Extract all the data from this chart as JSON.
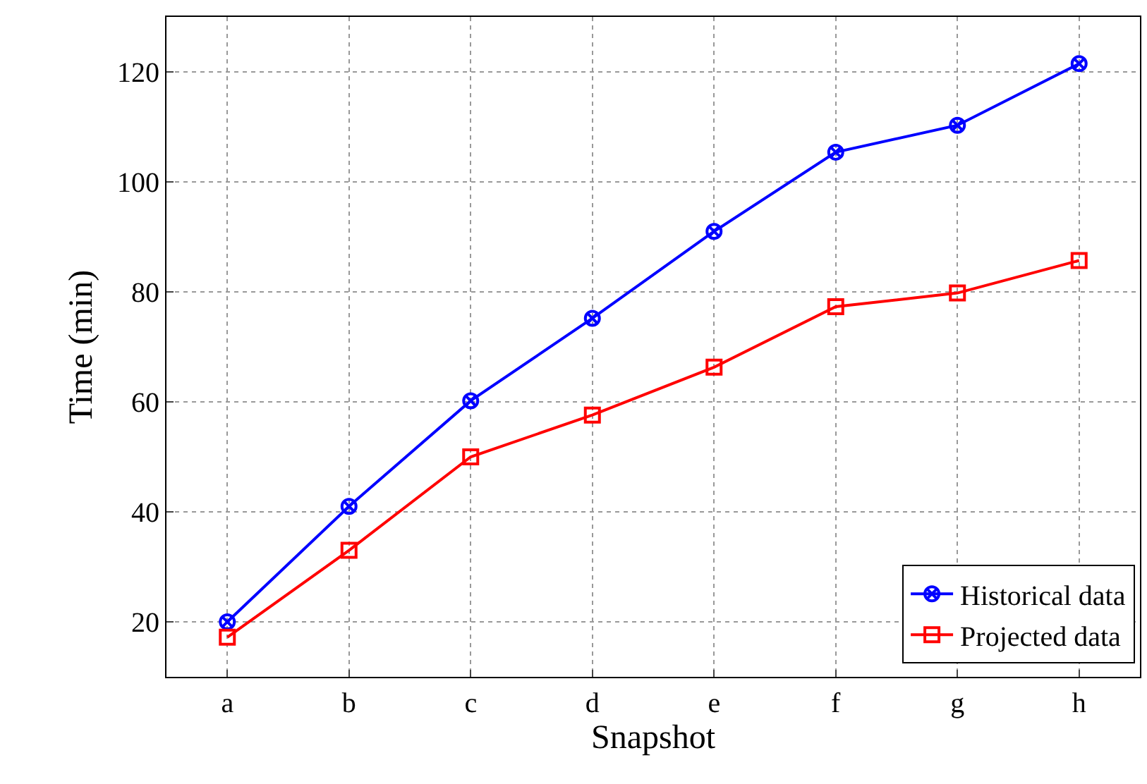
{
  "chart_data": {
    "type": "line",
    "xlabel": "Snapshot",
    "ylabel": "Time (min)",
    "categories": [
      "a",
      "b",
      "c",
      "d",
      "e",
      "f",
      "g",
      "h"
    ],
    "series": [
      {
        "name": "Historical data",
        "color": "#0000ff",
        "marker": "cross",
        "values": [
          20,
          41,
          60.2,
          75.2,
          91,
          105.4,
          110.3,
          121.5
        ]
      },
      {
        "name": "Projected data",
        "color": "#ff0000",
        "marker": "square",
        "values": [
          17.2,
          33,
          50,
          57.6,
          66.3,
          77.3,
          79.8,
          85.7
        ]
      }
    ],
    "ylim": [
      10,
      130
    ],
    "yticks": [
      20,
      40,
      60,
      80,
      100,
      120
    ],
    "grid": true,
    "legend": "bottom right",
    "line_style": "solid"
  }
}
